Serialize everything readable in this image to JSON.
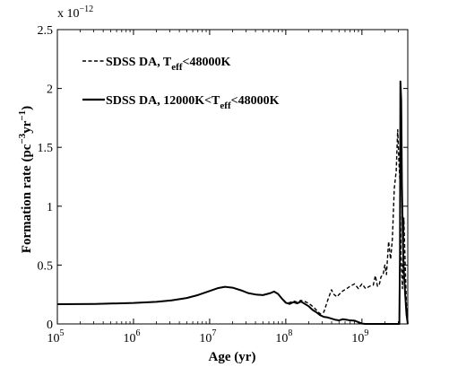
{
  "chart_data": {
    "type": "line",
    "xlabel": "Age (yr)",
    "ylabel": "Formation rate (pc^-3 yr^-1)",
    "ylabel_parts": {
      "main": "Formation rate (pc",
      "exp1": "−3",
      "mid": "yr",
      "exp2": "−1",
      "end": ")"
    },
    "xscale": "log",
    "xlim": [
      100000,
      4000000000
    ],
    "ylim": [
      0,
      2.5e-12
    ],
    "y_multiplier_label": {
      "base": "x 10",
      "exp": "−12"
    },
    "x_ticks": [
      {
        "value": 100000,
        "base": "10",
        "exp": "5"
      },
      {
        "value": 1000000,
        "base": "10",
        "exp": "6"
      },
      {
        "value": 10000000,
        "base": "10",
        "exp": "7"
      },
      {
        "value": 100000000,
        "base": "10",
        "exp": "8"
      },
      {
        "value": 1000000000,
        "base": "10",
        "exp": "9"
      }
    ],
    "y_ticks": [
      {
        "value": 0,
        "label": "0"
      },
      {
        "value": 5e-13,
        "label": "0.5"
      },
      {
        "value": 1e-12,
        "label": "1"
      },
      {
        "value": 1.5e-12,
        "label": "1.5"
      },
      {
        "value": 2e-12,
        "label": "2"
      },
      {
        "value": 2.5e-12,
        "label": "2.5"
      }
    ],
    "grid": false,
    "legend_position": "top-left",
    "series": [
      {
        "name": "SDSS DA, Teff<48000K",
        "legend": {
          "pre": "SDSS DA, T",
          "sub": "eff",
          "post": "<48000K"
        },
        "style": "dashed",
        "color": "#000000",
        "x": [
          100000,
          316000,
          1000000,
          2000000,
          3160000,
          5000000,
          7000000,
          10000000,
          13000000,
          16000000,
          20000000,
          26000000,
          32000000,
          40000000,
          50000000,
          63000000,
          70000000,
          79000000,
          89000000,
          100000000,
          112000000,
          126000000,
          141000000,
          158000000,
          178000000,
          200000000,
          224000000,
          251000000,
          282000000,
          316000000,
          355000000,
          398000000,
          430000000,
          470000000,
          500000000,
          560000000,
          630000000,
          700000000,
          800000000,
          900000000,
          1000000000,
          1120000000,
          1260000000,
          1410000000,
          1500000000,
          1600000000,
          1700000000,
          1780000000,
          1900000000,
          2000000000,
          2100000000,
          2240000000,
          2380000000,
          2510000000,
          2660000000,
          2820000000,
          2950000000,
          3050000000,
          3160000000,
          3260000000,
          3400000000,
          3550000000,
          3700000000,
          3850000000,
          4000000000
        ],
        "y": [
          1.68e-13,
          1.7e-13,
          1.78e-13,
          1.88e-13,
          2e-13,
          2.2e-13,
          2.45e-13,
          2.8e-13,
          3.05e-13,
          3.15e-13,
          3.08e-13,
          2.85e-13,
          2.62e-13,
          2.5e-13,
          2.45e-13,
          2.62e-13,
          2.75e-13,
          2.55e-13,
          2.15e-13,
          1.85e-13,
          1.8e-13,
          1.95e-13,
          1.85e-13,
          2e-13,
          1.9e-13,
          1.75e-13,
          1.5e-13,
          1.2e-13,
          8.5e-14,
          1e-13,
          2e-13,
          2.9e-13,
          2.5e-13,
          2.3e-13,
          2.5e-13,
          2.8e-13,
          3e-13,
          3.2e-13,
          3.4e-13,
          3e-13,
          3.4e-13,
          3e-13,
          3.2e-13,
          3.3e-13,
          4.1e-13,
          3.2e-13,
          3.4e-13,
          4e-13,
          4.2e-13,
          5e-13,
          4.2e-13,
          7e-13,
          5.5e-13,
          7.2e-13,
          1.15e-12,
          1.3e-12,
          1.65e-12,
          1.4e-12,
          1.2e-12,
          6e-13,
          3e-13,
          9e-13,
          5e-13,
          1.5e-13,
          2e-14
        ]
      },
      {
        "name": "SDSS DA, 12000K<Teff<48000K",
        "legend": {
          "pre": "SDSS DA, 12000K<T",
          "sub": "eff",
          "post": "<48000K"
        },
        "style": "solid",
        "color": "#000000",
        "x": [
          100000,
          316000,
          1000000,
          2000000,
          3160000,
          5000000,
          7000000,
          10000000,
          13000000,
          16000000,
          20000000,
          26000000,
          32000000,
          40000000,
          50000000,
          63000000,
          70000000,
          79000000,
          89000000,
          100000000,
          112000000,
          126000000,
          141000000,
          158000000,
          178000000,
          200000000,
          224000000,
          251000000,
          282000000,
          316000000,
          355000000,
          398000000,
          450000000,
          500000000,
          560000000,
          630000000,
          700000000,
          800000000,
          900000000,
          1000000000,
          1100000000,
          1200000000,
          1300000000,
          1500000000,
          1700000000,
          2000000000,
          2240000000,
          2510000000,
          2820000000,
          2950000000,
          3050000000,
          3100000000,
          3160000000,
          3200000000,
          3280000000,
          3350000000,
          3450000000,
          3550000000,
          3700000000,
          3850000000,
          4000000000
        ],
        "y": [
          1.68e-13,
          1.7e-13,
          1.78e-13,
          1.88e-13,
          2e-13,
          2.2e-13,
          2.45e-13,
          2.8e-13,
          3.05e-13,
          3.15e-13,
          3.08e-13,
          2.85e-13,
          2.62e-13,
          2.5e-13,
          2.45e-13,
          2.62e-13,
          2.75e-13,
          2.55e-13,
          2.15e-13,
          1.8e-13,
          1.7e-13,
          1.85e-13,
          1.75e-13,
          1.9e-13,
          1.7e-13,
          1.5e-13,
          1.2e-13,
          1e-13,
          7.5e-14,
          6e-14,
          5.5e-14,
          4.5e-14,
          3.5e-14,
          3e-14,
          4e-14,
          3.5e-14,
          3e-14,
          2.8e-14,
          1.5e-14,
          3e-15,
          0.0,
          0.0,
          0.0,
          0.0,
          0.0,
          0.0,
          0.0,
          0.0,
          0.0,
          0.0,
          0.0,
          0.0,
          6e-13,
          2.06e-12,
          1.9e-12,
          1.2e-12,
          7e-13,
          4.5e-13,
          2.5e-13,
          8e-14,
          0.0
        ]
      }
    ]
  }
}
